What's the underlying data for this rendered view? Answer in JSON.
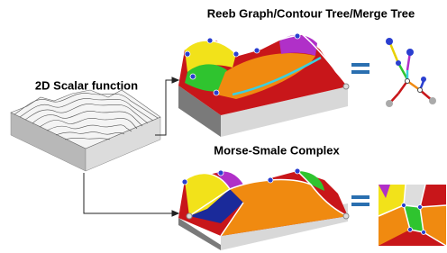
{
  "nodes": [
    {
      "label": "2D Scalar function"
    },
    {
      "label": "Reeb Graph/Contour Tree/Merge Tree"
    },
    {
      "label": "Morse-Smale Complex"
    }
  ]
}
